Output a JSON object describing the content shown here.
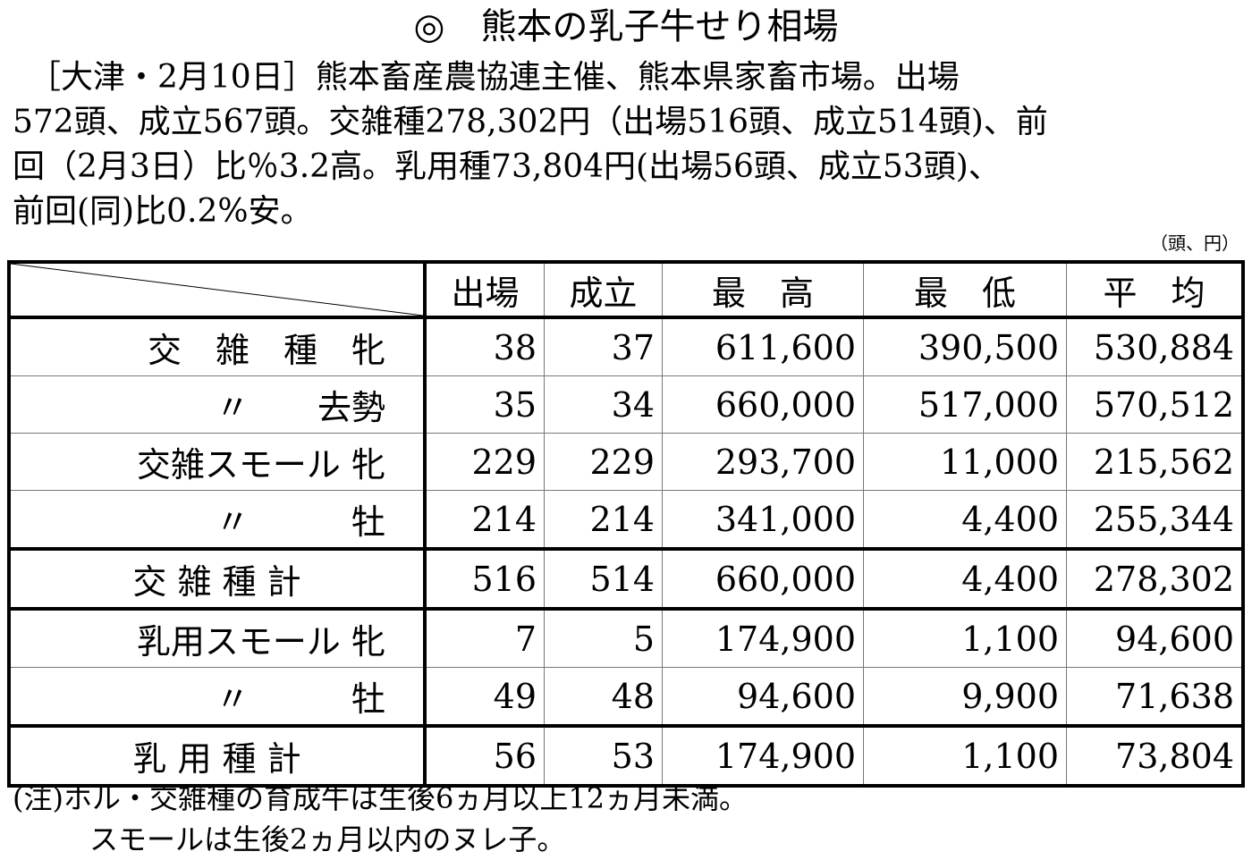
{
  "title": "◎　熊本の乳子牛せり相場",
  "paragraph": [
    "　［大津・2月10日］熊本畜産農協連主催、熊本県家畜市場。出場",
    "572頭、成立567頭。交雑種278,302円（出場516頭、成立514頭)、前",
    "回（2月3日）比％3.2高。乳用種73,804円(出場56頭、成立53頭)、",
    "前回(同)比0.2%安。"
  ],
  "unit": "（頭、円）",
  "table": {
    "headers": [
      "出場",
      "成立",
      "最　高",
      "最　低",
      "平　均"
    ],
    "rows": [
      {
        "label": "交　雑　種　牝",
        "values": [
          "38",
          "37",
          "611,600",
          "390,500",
          "530,884"
        ]
      },
      {
        "label": "〃　　去勢",
        "values": [
          "35",
          "34",
          "660,000",
          "517,000",
          "570,512"
        ]
      },
      {
        "label": "交雑スモール 牝",
        "values": [
          "229",
          "229",
          "293,700",
          "11,000",
          "215,562"
        ]
      },
      {
        "label": "〃　　　牡",
        "values": [
          "214",
          "214",
          "341,000",
          "4,400",
          "255,344"
        ]
      },
      {
        "label": "交 雑 種 計",
        "values": [
          "516",
          "514",
          "660,000",
          "4,400",
          "278,302"
        ]
      },
      {
        "label": "乳用スモール 牝",
        "values": [
          "7",
          "5",
          "174,900",
          "1,100",
          "94,600"
        ]
      },
      {
        "label": "〃　　　牡",
        "values": [
          "49",
          "48",
          "94,600",
          "9,900",
          "71,638"
        ]
      },
      {
        "label": "乳 用 種 計",
        "values": [
          "56",
          "53",
          "174,900",
          "1,100",
          "73,804"
        ]
      }
    ]
  },
  "notes": [
    "(注)ホル・交雑種の育成牛は生後6ヵ月以上12ヵ月未満。",
    "スモールは生後2ヵ月以内のヌレ子。"
  ]
}
